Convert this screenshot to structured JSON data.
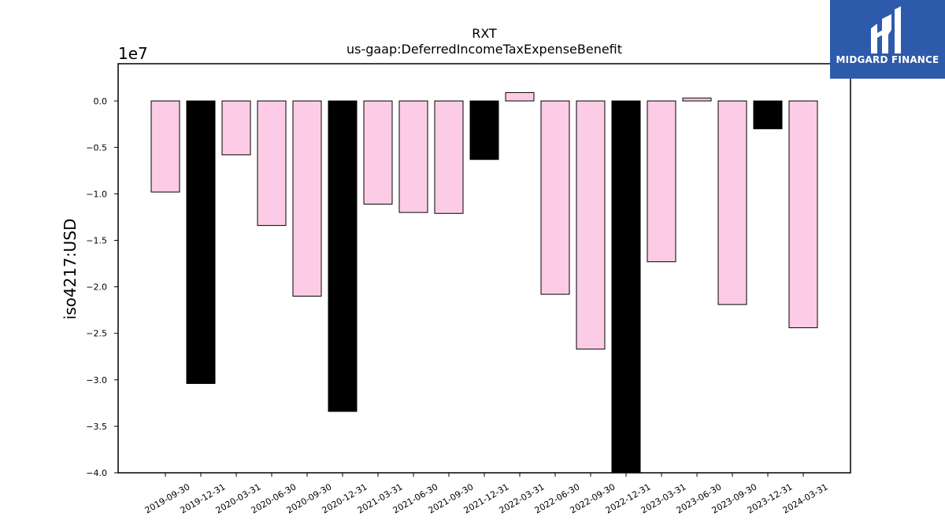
{
  "chart_data": {
    "type": "bar",
    "title": "RXT",
    "subtitle": "us-gaap:DeferredIncomeTaxExpenseBenefit",
    "ylabel": "iso4217:USD",
    "xlabel": "",
    "offset_label": "1e7",
    "scale": 10000000,
    "ylim": [
      -40000000,
      4000000
    ],
    "yticks": [
      0,
      -5000000,
      -10000000,
      -15000000,
      -20000000,
      -25000000,
      -30000000,
      -35000000,
      -40000000
    ],
    "ytick_labels": [
      "0.0",
      "−0.5",
      "−1.0",
      "−1.5",
      "−2.0",
      "−2.5",
      "−3.0",
      "−3.5",
      "−4.0"
    ],
    "grid": false,
    "colors": {
      "quarter": "#fccce6",
      "year_end": "#000000",
      "edge": "#000000"
    },
    "categories": [
      "2019-09-30",
      "2019-12-31",
      "2020-03-31",
      "2020-06-30",
      "2020-09-30",
      "2020-12-31",
      "2021-03-31",
      "2021-06-30",
      "2021-09-30",
      "2021-12-31",
      "2022-03-31",
      "2022-06-30",
      "2022-09-30",
      "2022-12-31",
      "2023-03-31",
      "2023-06-30",
      "2023-09-30",
      "2023-12-31",
      "2024-03-31"
    ],
    "values": [
      -9800000,
      -30400000,
      -5800000,
      -13400000,
      -21000000,
      -33400000,
      -11100000,
      -12000000,
      -12100000,
      -6300000,
      900000,
      -20800000,
      -26700000,
      -40000000,
      -17300000,
      300000,
      -21900000,
      -3000000,
      -24400000
    ],
    "bar_colors": [
      "#fccce6",
      "#000000",
      "#fccce6",
      "#fccce6",
      "#fccce6",
      "#000000",
      "#fccce6",
      "#fccce6",
      "#fccce6",
      "#000000",
      "#fccce6",
      "#fccce6",
      "#fccce6",
      "#000000",
      "#fccce6",
      "#fccce6",
      "#fccce6",
      "#000000",
      "#fccce6"
    ]
  },
  "brand": {
    "name": "MIDGARD FINANCE",
    "background": "#2e5aac",
    "logo_icon": "midgard-logo-icon"
  }
}
